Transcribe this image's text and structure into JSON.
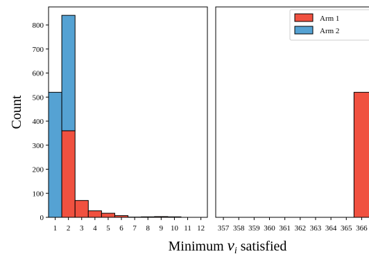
{
  "chart_data": [
    {
      "type": "bar",
      "stacked": true,
      "x_categories": [
        "1",
        "2",
        "3",
        "4",
        "5",
        "6",
        "7",
        "8",
        "9",
        "10",
        "11",
        "12"
      ],
      "series": [
        {
          "name": "Arm 1",
          "color": "#f05140",
          "values": [
            0,
            360,
            70,
            27,
            17,
            7,
            1,
            2,
            3,
            2,
            0,
            0
          ]
        },
        {
          "name": "Arm 2",
          "color": "#55a2d3",
          "values": [
            520,
            480,
            0,
            0,
            0,
            0,
            0,
            0,
            0,
            0,
            0,
            0
          ]
        }
      ],
      "ylabel": "Count",
      "ylim": [
        0,
        875
      ],
      "yticks": [
        0,
        100,
        200,
        300,
        400,
        500,
        600,
        700,
        800
      ]
    },
    {
      "type": "bar",
      "stacked": true,
      "x_categories": [
        "357",
        "358",
        "359",
        "360",
        "361",
        "362",
        "363",
        "364",
        "365",
        "366"
      ],
      "series": [
        {
          "name": "Arm 1",
          "color": "#f05140",
          "values": [
            0,
            0,
            0,
            0,
            0,
            0,
            0,
            0,
            0,
            520
          ]
        },
        {
          "name": "Arm 2",
          "color": "#55a2d3",
          "values": [
            0,
            0,
            0,
            0,
            0,
            0,
            0,
            0,
            0,
            0
          ]
        }
      ],
      "ylim": [
        0,
        875
      ],
      "legend": {
        "position": "top-right",
        "entries": [
          "Arm 1",
          "Arm 2"
        ]
      }
    }
  ],
  "xlabel": {
    "prefix": "Minimum ",
    "symbol": "ν",
    "subscript": "i",
    "suffix": " satisfied"
  }
}
